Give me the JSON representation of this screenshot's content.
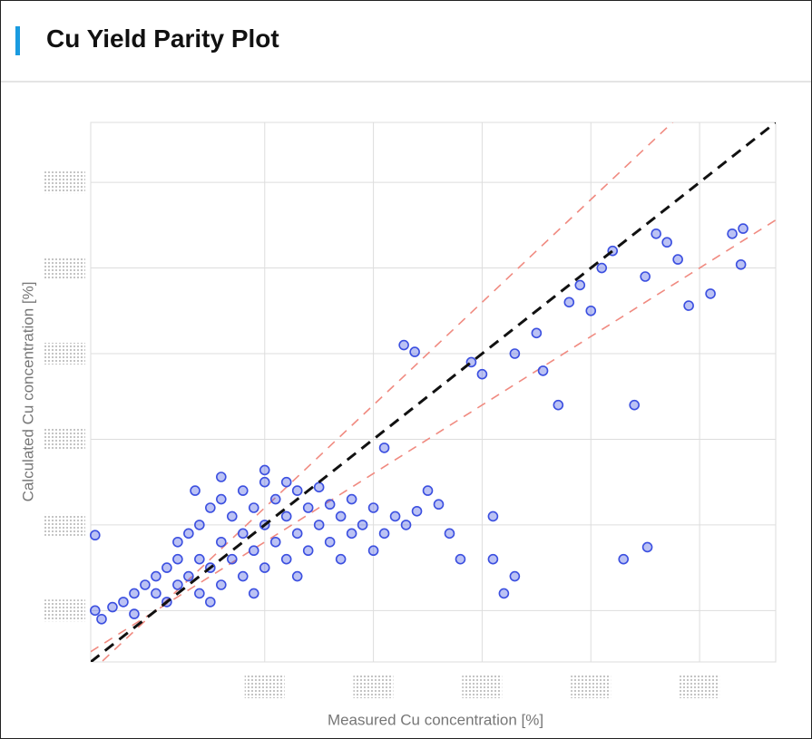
{
  "header": {
    "title": "Cu Yield Parity Plot"
  },
  "chart_data": {
    "type": "scatter",
    "xlabel": "Measured Cu concentration [%]",
    "ylabel": "Calculated Cu concentration [%]",
    "xlim": [
      -0.3,
      2.85
    ],
    "ylim": [
      -0.3,
      2.85
    ],
    "xticks": [
      0.5,
      1,
      1.5,
      2,
      2.5
    ],
    "yticks": [
      0,
      0.5,
      1,
      1.5,
      2,
      2.5
    ],
    "grid": true,
    "color": "#3b4fe0",
    "parity_line": {
      "slope": 1,
      "color": "#111111"
    },
    "bound_lines": [
      {
        "slope": 1.2,
        "color": "#f08a80"
      },
      {
        "slope": 0.8,
        "color": "#f08a80"
      }
    ],
    "x": [
      -0.28,
      -0.25,
      -0.2,
      -0.15,
      -0.1,
      -0.1,
      -0.05,
      0,
      0,
      0.05,
      0.05,
      0.1,
      0.1,
      0.1,
      0.15,
      0.15,
      0.2,
      0.2,
      0.2,
      0.25,
      0.25,
      0.3,
      0.3,
      0.3,
      0.35,
      0.35,
      0.4,
      0.4,
      0.4,
      0.45,
      0.45,
      0.5,
      0.5,
      0.5,
      0.55,
      0.55,
      0.6,
      0.6,
      0.6,
      0.65,
      0.65,
      0.7,
      0.7,
      0.75,
      0.75,
      0.8,
      0.8,
      0.85,
      0.9,
      0.9,
      0.95,
      1.0,
      1.05,
      1.1,
      1.15,
      1.2,
      0.18,
      0.3,
      0.5,
      0.25,
      0.45,
      0.65,
      0.85,
      1.0,
      1.25,
      1.3,
      1.35,
      1.4,
      1.55,
      1.55,
      1.6,
      1.65,
      2.15,
      2.26,
      1.05,
      -0.28,
      1.45,
      1.5,
      1.65,
      1.75,
      1.78,
      1.9,
      1.95,
      2.0,
      2.05,
      2.1,
      1.85,
      2.2,
      2.25,
      2.3,
      2.35,
      2.4,
      2.45,
      2.55,
      2.65,
      2.7,
      2.69,
      1.14,
      1.19
    ],
    "values": [
      0,
      -0.05,
      0.02,
      0.05,
      0.1,
      -0.02,
      0.15,
      0.1,
      0.2,
      0.05,
      0.25,
      0.15,
      0.3,
      0.4,
      0.2,
      0.45,
      0.1,
      0.3,
      0.5,
      0.25,
      0.6,
      0.15,
      0.4,
      0.65,
      0.3,
      0.55,
      0.2,
      0.45,
      0.7,
      0.35,
      0.6,
      0.25,
      0.5,
      0.75,
      0.4,
      0.65,
      0.3,
      0.55,
      0.75,
      0.45,
      0.7,
      0.35,
      0.6,
      0.5,
      0.72,
      0.4,
      0.62,
      0.55,
      0.45,
      0.65,
      0.5,
      0.6,
      0.45,
      0.55,
      0.5,
      0.58,
      0.7,
      0.78,
      0.82,
      0.05,
      0.1,
      0.2,
      0.3,
      0.35,
      0.7,
      0.62,
      0.45,
      0.3,
      0.3,
      0.55,
      0.1,
      0.2,
      0.3,
      0.37,
      0.95,
      0.44,
      1.45,
      1.38,
      1.5,
      1.62,
      1.4,
      1.8,
      1.9,
      1.75,
      2.0,
      2.1,
      1.2,
      1.2,
      1.95,
      2.2,
      2.15,
      2.05,
      1.78,
      1.85,
      2.2,
      2.23,
      2.02,
      1.55,
      1.51
    ]
  }
}
